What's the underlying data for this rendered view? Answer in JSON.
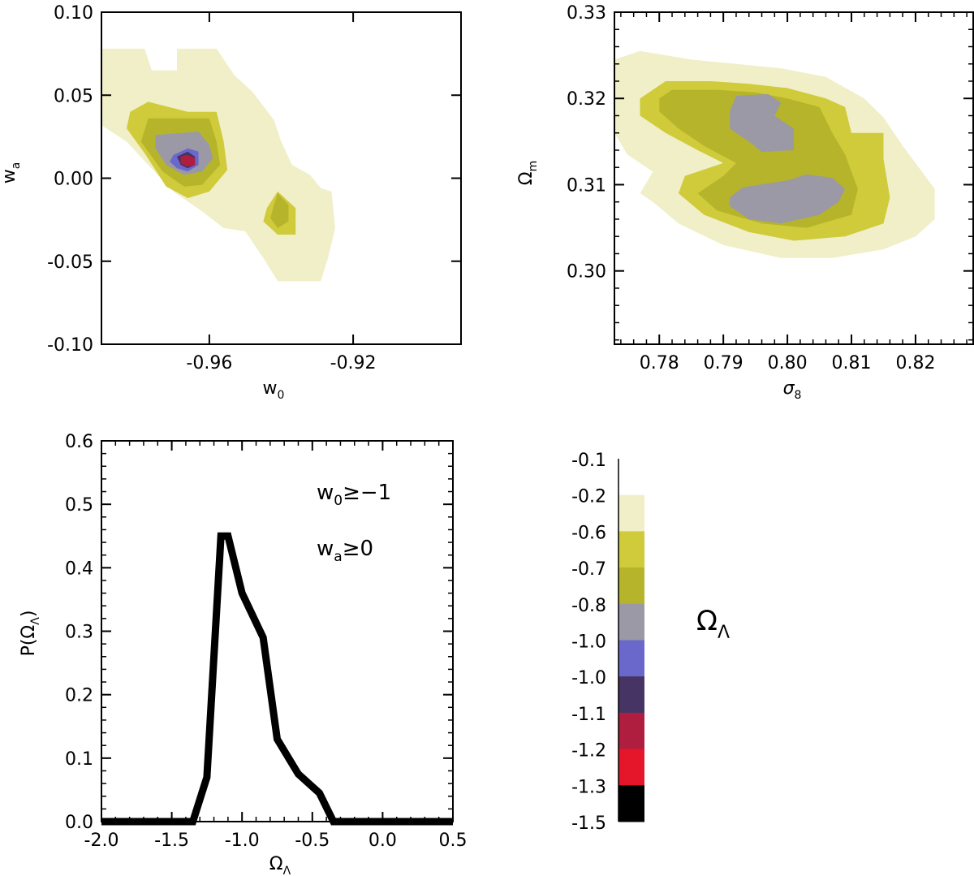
{
  "colors": {
    "c1": "#f0efc8",
    "c2": "#cfcb3a",
    "c3": "#b6b42b",
    "c4": "#9a99a5",
    "c5": "#6b68cc",
    "c6": "#463464",
    "c7": "#b01e3f",
    "c8": "#e5152a",
    "c9": "#000000"
  },
  "chart_data": [
    {
      "type": "contour",
      "panel": "top-left",
      "xlabel": "w",
      "xlabel_sub": "0",
      "ylabel": "w",
      "ylabel_sub": "a",
      "xlim": [
        -0.99,
        -0.89
      ],
      "ylim": [
        -0.1,
        0.1
      ],
      "xticks": [
        -0.96,
        -0.92
      ],
      "xtick_labels": [
        "-0.96",
        "-0.92"
      ],
      "yticks": [
        -0.1,
        -0.05,
        0.0,
        0.05,
        0.1
      ],
      "ytick_labels": [
        "-0.10",
        "-0.05",
        "0.00",
        "0.05",
        "0.10"
      ],
      "regions": [
        {
          "level": "c1",
          "points": [
            [
              -0.99,
              0.078
            ],
            [
              -0.978,
              0.078
            ],
            [
              -0.976,
              0.065
            ],
            [
              -0.969,
              0.065
            ],
            [
              -0.969,
              0.078
            ],
            [
              -0.958,
              0.078
            ],
            [
              -0.953,
              0.062
            ],
            [
              -0.948,
              0.052
            ],
            [
              -0.942,
              0.035
            ],
            [
              -0.94,
              0.022
            ],
            [
              -0.937,
              0.008
            ],
            [
              -0.932,
              0.002
            ],
            [
              -0.929,
              -0.006
            ],
            [
              -0.926,
              -0.008
            ],
            [
              -0.925,
              -0.03
            ],
            [
              -0.927,
              -0.048
            ],
            [
              -0.929,
              -0.062
            ],
            [
              -0.941,
              -0.062
            ],
            [
              -0.945,
              -0.048
            ],
            [
              -0.95,
              -0.032
            ],
            [
              -0.956,
              -0.03
            ],
            [
              -0.962,
              -0.02
            ],
            [
              -0.97,
              -0.008
            ],
            [
              -0.977,
              0.008
            ],
            [
              -0.983,
              0.022
            ],
            [
              -0.99,
              0.032
            ]
          ]
        },
        {
          "level": "c2",
          "points": [
            [
              -0.982,
              0.04
            ],
            [
              -0.977,
              0.046
            ],
            [
              -0.966,
              0.04
            ],
            [
              -0.958,
              0.04
            ],
            [
              -0.956,
              0.022
            ],
            [
              -0.955,
              0.005
            ],
            [
              -0.96,
              -0.008
            ],
            [
              -0.966,
              -0.012
            ],
            [
              -0.972,
              -0.005
            ],
            [
              -0.978,
              0.015
            ],
            [
              -0.983,
              0.03
            ]
          ]
        },
        {
          "level": "c2",
          "points": [
            [
              -0.944,
              -0.018
            ],
            [
              -0.941,
              -0.008
            ],
            [
              -0.936,
              -0.018
            ],
            [
              -0.936,
              -0.034
            ],
            [
              -0.941,
              -0.034
            ],
            [
              -0.945,
              -0.026
            ]
          ]
        },
        {
          "level": "c3",
          "points": [
            [
              -0.977,
              0.036
            ],
            [
              -0.96,
              0.036
            ],
            [
              -0.958,
              0.022
            ],
            [
              -0.957,
              0.008
            ],
            [
              -0.962,
              -0.004
            ],
            [
              -0.967,
              -0.005
            ],
            [
              -0.973,
              0.004
            ],
            [
              -0.979,
              0.022
            ]
          ]
        },
        {
          "level": "c3",
          "points": [
            [
              -0.942,
              -0.016
            ],
            [
              -0.941,
              -0.009
            ],
            [
              -0.938,
              -0.016
            ],
            [
              -0.938,
              -0.026
            ],
            [
              -0.941,
              -0.03
            ],
            [
              -0.943,
              -0.024
            ]
          ]
        },
        {
          "level": "c4",
          "points": [
            [
              -0.975,
              0.026
            ],
            [
              -0.963,
              0.028
            ],
            [
              -0.96,
              0.02
            ],
            [
              -0.959,
              0.012
            ],
            [
              -0.962,
              0.004
            ],
            [
              -0.967,
              0.002
            ],
            [
              -0.972,
              0.008
            ],
            [
              -0.975,
              0.018
            ]
          ]
        },
        {
          "level": "c5",
          "points": [
            [
              -0.97,
              0.014
            ],
            [
              -0.966,
              0.018
            ],
            [
              -0.963,
              0.016
            ],
            [
              -0.963,
              0.008
            ],
            [
              -0.966,
              0.004
            ],
            [
              -0.969,
              0.006
            ],
            [
              -0.971,
              0.01
            ]
          ]
        },
        {
          "level": "c6",
          "points": [
            [
              -0.969,
              0.013
            ],
            [
              -0.966,
              0.016
            ],
            [
              -0.964,
              0.013
            ],
            [
              -0.964,
              0.008
            ],
            [
              -0.966,
              0.006
            ],
            [
              -0.968,
              0.008
            ]
          ]
        },
        {
          "level": "c7",
          "points": [
            [
              -0.968,
              0.013
            ],
            [
              -0.966,
              0.014
            ],
            [
              -0.964,
              0.012
            ],
            [
              -0.964,
              0.008
            ],
            [
              -0.966,
              0.007
            ],
            [
              -0.968,
              0.009
            ]
          ]
        }
      ]
    },
    {
      "type": "contour",
      "panel": "top-right",
      "xlabel": "σ",
      "xlabel_sub": "8",
      "ylabel": "Ω",
      "ylabel_sub": "m",
      "xlim": [
        0.773,
        0.829
      ],
      "ylim": [
        0.2915,
        0.33
      ],
      "xticks": [
        0.78,
        0.79,
        0.8,
        0.81,
        0.82
      ],
      "xtick_labels": [
        "0.78",
        "0.79",
        "0.80",
        "0.81",
        "0.82"
      ],
      "yticks": [
        0.3,
        0.31,
        0.32,
        0.33
      ],
      "ytick_labels": [
        "0.30",
        "0.31",
        "0.32",
        "0.33"
      ],
      "regions": [
        {
          "level": "c1",
          "points": [
            [
              0.773,
              0.3245
            ],
            [
              0.777,
              0.3255
            ],
            [
              0.785,
              0.3245
            ],
            [
              0.792,
              0.324
            ],
            [
              0.799,
              0.3235
            ],
            [
              0.806,
              0.3225
            ],
            [
              0.812,
              0.32
            ],
            [
              0.815,
              0.3178
            ],
            [
              0.818,
              0.3145
            ],
            [
              0.821,
              0.3115
            ],
            [
              0.823,
              0.3095
            ],
            [
              0.823,
              0.306
            ],
            [
              0.82,
              0.304
            ],
            [
              0.815,
              0.3025
            ],
            [
              0.807,
              0.3015
            ],
            [
              0.799,
              0.3015
            ],
            [
              0.79,
              0.303
            ],
            [
              0.783,
              0.3055
            ],
            [
              0.779,
              0.308
            ],
            [
              0.777,
              0.309
            ],
            [
              0.779,
              0.3115
            ],
            [
              0.775,
              0.3135
            ],
            [
              0.773,
              0.316
            ]
          ]
        },
        {
          "level": "c2",
          "points": [
            [
              0.777,
              0.32
            ],
            [
              0.781,
              0.322
            ],
            [
              0.788,
              0.322
            ],
            [
              0.794,
              0.3217
            ],
            [
              0.8,
              0.3212
            ],
            [
              0.806,
              0.32
            ],
            [
              0.809,
              0.319
            ],
            [
              0.81,
              0.316
            ],
            [
              0.815,
              0.316
            ],
            [
              0.815,
              0.313
            ],
            [
              0.816,
              0.3085
            ],
            [
              0.815,
              0.3055
            ],
            [
              0.809,
              0.304
            ],
            [
              0.801,
              0.3035
            ],
            [
              0.794,
              0.3045
            ],
            [
              0.787,
              0.3065
            ],
            [
              0.783,
              0.309
            ],
            [
              0.784,
              0.311
            ],
            [
              0.79,
              0.3125
            ],
            [
              0.786,
              0.314
            ],
            [
              0.781,
              0.316
            ],
            [
              0.777,
              0.318
            ]
          ]
        },
        {
          "level": "c3",
          "points": [
            [
              0.78,
              0.32
            ],
            [
              0.782,
              0.321
            ],
            [
              0.789,
              0.321
            ],
            [
              0.795,
              0.3207
            ],
            [
              0.8,
              0.32
            ],
            [
              0.805,
              0.319
            ],
            [
              0.807,
              0.316
            ],
            [
              0.809,
              0.3135
            ],
            [
              0.811,
              0.3095
            ],
            [
              0.81,
              0.3065
            ],
            [
              0.803,
              0.305
            ],
            [
              0.796,
              0.3055
            ],
            [
              0.789,
              0.307
            ],
            [
              0.786,
              0.309
            ],
            [
              0.79,
              0.311
            ],
            [
              0.792,
              0.3125
            ],
            [
              0.787,
              0.3145
            ],
            [
              0.783,
              0.3165
            ],
            [
              0.78,
              0.3185
            ]
          ]
        },
        {
          "level": "c4",
          "points": [
            [
              0.791,
              0.3185
            ],
            [
              0.792,
              0.3203
            ],
            [
              0.797,
              0.3205
            ],
            [
              0.799,
              0.3195
            ],
            [
              0.798,
              0.318
            ],
            [
              0.801,
              0.3165
            ],
            [
              0.801,
              0.314
            ],
            [
              0.796,
              0.3138
            ],
            [
              0.794,
              0.315
            ],
            [
              0.791,
              0.3165
            ]
          ]
        },
        {
          "level": "c4",
          "points": [
            [
              0.791,
              0.3085
            ],
            [
              0.793,
              0.3097
            ],
            [
              0.8,
              0.3105
            ],
            [
              0.803,
              0.3112
            ],
            [
              0.807,
              0.3108
            ],
            [
              0.809,
              0.3095
            ],
            [
              0.808,
              0.308
            ],
            [
              0.805,
              0.3065
            ],
            [
              0.799,
              0.3055
            ],
            [
              0.794,
              0.306
            ],
            [
              0.791,
              0.3075
            ]
          ]
        }
      ]
    },
    {
      "type": "line",
      "panel": "bottom-left",
      "xlabel": "Ω",
      "xlabel_sub": "Λ",
      "ylabel": "P(Ω",
      "ylabel_sub": "Λ",
      "ylabel_end": ")",
      "xlim": [
        -2.0,
        0.5
      ],
      "ylim": [
        0.0,
        0.6
      ],
      "xticks": [
        -2.0,
        -1.5,
        -1.0,
        -0.5,
        0.0,
        0.5
      ],
      "xtick_labels": [
        "-2.0",
        "-1.5",
        "-1.0",
        "-0.5",
        "0.0",
        "0.5"
      ],
      "yticks": [
        0.0,
        0.1,
        0.2,
        0.3,
        0.4,
        0.5,
        0.6
      ],
      "ytick_labels": [
        "0.0",
        "0.1",
        "0.2",
        "0.3",
        "0.4",
        "0.5",
        "0.6"
      ],
      "x": [
        -2.0,
        -1.35,
        -1.25,
        -1.15,
        -1.1,
        -1.0,
        -0.85,
        -0.75,
        -0.6,
        -0.45,
        -0.35,
        0.5
      ],
      "y": [
        0.0,
        0.0,
        0.07,
        0.45,
        0.45,
        0.36,
        0.29,
        0.13,
        0.075,
        0.045,
        0.0,
        0.0
      ],
      "annotations": [
        {
          "text": "w",
          "sub": "0",
          "after": "≥−1"
        },
        {
          "text": "w",
          "sub": "a",
          "after": "≥0"
        }
      ]
    },
    {
      "type": "colorbar",
      "panel": "bottom-right",
      "title": "Ω",
      "title_sub": "Λ",
      "tick_labels": [
        "-0.1",
        "-0.2",
        "-0.6",
        "-0.7",
        "-0.8",
        "-1.0",
        "-1.0",
        "-1.1",
        "-1.2",
        "-1.3",
        "-1.5"
      ],
      "levels": [
        "c1",
        "c2",
        "c3",
        "c4",
        "c5",
        "c6",
        "c7",
        "c8",
        "c9"
      ]
    }
  ]
}
